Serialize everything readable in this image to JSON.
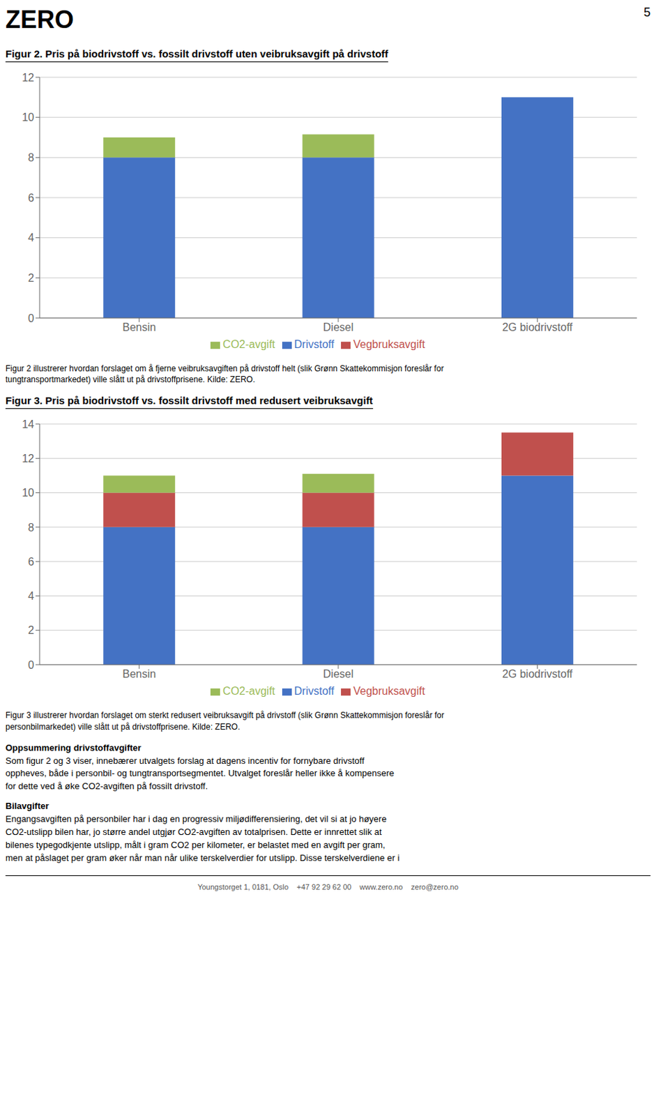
{
  "header": "ZERO",
  "page_number": "5",
  "chart_data": [
    {
      "type": "bar",
      "title": "Figur 2. Pris på biodrivstoff vs. fossilt drivstoff uten veibruksavgift på drivstoff",
      "categories": [
        "Bensin",
        "Diesel",
        "2G biodrivstoff"
      ],
      "series": [
        {
          "name": "Drivstoff",
          "color": "#4472C4",
          "values": [
            8.0,
            8.0,
            11.0
          ]
        },
        {
          "name": "Vegbruksavgift",
          "color": "#C0504D",
          "values": [
            0.0,
            0.0,
            0.0
          ]
        },
        {
          "name": "CO2-avgift",
          "color": "#9BBB59",
          "values": [
            1.0,
            1.15,
            0.0
          ]
        }
      ],
      "stacked": true,
      "ylim": [
        0,
        12
      ],
      "yticks": [
        0,
        2,
        4,
        6,
        8,
        10,
        12
      ],
      "grid": true,
      "legend": "bottom",
      "caption": "Figur 2 illustrerer hvordan forslaget om å fjerne veibruksavgiften på drivstoff helt (slik Grønn Skattekommisjon foreslår for\ntungtransportmarkedet) ville slått ut på drivstoffprisene. Kilde: ZERO."
    },
    {
      "type": "bar",
      "title": "Figur 3. Pris på biodrivstoff vs. fossilt drivstoff med redusert veibruksavgift",
      "categories": [
        "Bensin",
        "Diesel",
        "2G biodrivstoff"
      ],
      "series": [
        {
          "name": "Drivstoff",
          "color": "#4472C4",
          "values": [
            8.0,
            8.0,
            11.0
          ]
        },
        {
          "name": "Vegbruksavgift",
          "color": "#C0504D",
          "values": [
            2.0,
            2.0,
            2.5
          ]
        },
        {
          "name": "CO2-avgift",
          "color": "#9BBB59",
          "values": [
            1.0,
            1.1,
            0.0
          ]
        }
      ],
      "stacked": true,
      "ylim": [
        0,
        14
      ],
      "yticks": [
        0,
        2,
        4,
        6,
        8,
        10,
        12,
        14
      ],
      "grid": true,
      "legend": "bottom",
      "caption": "Figur 3 illustrerer hvordan forslaget om sterkt redusert veibruksavgift på drivstoff (slik Grønn Skattekommisjon foreslår for\npersonbilmarkedet) ville slått ut på drivstoffprisene. Kilde: ZERO."
    }
  ],
  "body_text": [
    {
      "heading": "Oppsummering drivstoffavgifter",
      "lines": [
        "Som figur 2 og 3 viser, innebærer utvalgets forslag at dagens incentiv for fornybare drivstoff",
        "oppheves, både i personbil- og tungtransportsegmentet. Utvalget foreslår heller ikke å kompensere",
        "for dette ved å øke CO2-avgiften på fossilt drivstoff."
      ]
    },
    {
      "heading": "Bilavgifter",
      "lines": [
        "Engangsavgiften på personbiler har i dag en progressiv miljødifferensiering, det vil si at jo høyere",
        "CO2-utslipp bilen har, jo større andel utgjør CO2-avgiften av totalprisen. Dette er innrettet slik at",
        "bilenes typegodkjente utslipp, målt i gram CO2 per kilometer, er belastet med en avgift per gram,",
        "men at påslaget per gram øker når man når ulike terskelverdier for utslipp. Disse terskelverdiene er i"
      ]
    }
  ],
  "footer": "Youngstorget 1, 0181, Oslo    +47 92 29 62 00    www.zero.no    zero@zero.no"
}
